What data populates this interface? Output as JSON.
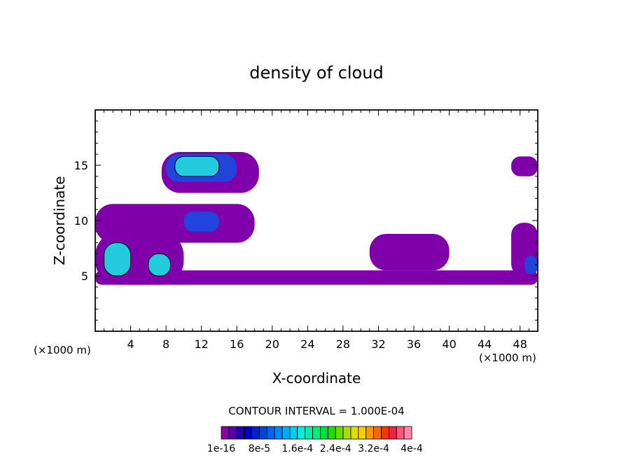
{
  "chart_data": {
    "type": "heatmap",
    "title": "density of cloud",
    "xlabel": "X-coordinate",
    "ylabel": "Z-coordinate",
    "x_unit_note": "(×1000 m)",
    "y_unit_note": "(×1000 m)",
    "xlim": [
      0,
      50
    ],
    "ylim": [
      0,
      20
    ],
    "x_ticks": [
      4,
      8,
      12,
      16,
      20,
      24,
      28,
      32,
      36,
      40,
      44,
      48
    ],
    "y_ticks": [
      5,
      10,
      15
    ],
    "contour_interval_text": "CONTOUR INTERVAL = 1.000E-04",
    "colorbar": {
      "colors": [
        "#8800aa",
        "#5500aa",
        "#2200aa",
        "#0000bb",
        "#0022cc",
        "#0044dd",
        "#0066ee",
        "#0088ff",
        "#00aaff",
        "#00ccee",
        "#00eedd",
        "#00eeaa",
        "#00ee77",
        "#00dd44",
        "#22dd00",
        "#66dd00",
        "#aadd00",
        "#dddd00",
        "#ffcc00",
        "#ff9900",
        "#ff6600",
        "#ff3300",
        "#ee2244",
        "#ff5577",
        "#ff88aa"
      ],
      "tick_labels": [
        "1e-16",
        "8e-5",
        "1.6e-4",
        "2.4e-4",
        "3.2e-4",
        "4e-4"
      ]
    },
    "regions": [
      {
        "level": "low",
        "x": [
          15,
          18
        ],
        "z": [
          13,
          15.5
        ]
      },
      {
        "level": "low",
        "x": [
          7.5,
          18.5
        ],
        "z": [
          12.5,
          16.2
        ]
      },
      {
        "level": "mid",
        "x": [
          8,
          16
        ],
        "z": [
          13.5,
          16
        ]
      },
      {
        "level": "high",
        "x": [
          9,
          14
        ],
        "z": [
          14,
          15.8
        ]
      },
      {
        "level": "low",
        "x": [
          0,
          18
        ],
        "z": [
          8,
          11.5
        ]
      },
      {
        "level": "mid",
        "x": [
          10,
          14
        ],
        "z": [
          9,
          10.8
        ]
      },
      {
        "level": "low",
        "x": [
          0,
          50
        ],
        "z": [
          4.2,
          5.5
        ]
      },
      {
        "level": "low",
        "x": [
          0,
          10
        ],
        "z": [
          4.2,
          9
        ]
      },
      {
        "level": "high",
        "x": [
          1,
          4
        ],
        "z": [
          5,
          8
        ]
      },
      {
        "level": "high",
        "x": [
          6,
          8.5
        ],
        "z": [
          5,
          7
        ]
      },
      {
        "level": "low",
        "x": [
          31,
          40
        ],
        "z": [
          5.5,
          8.8
        ]
      },
      {
        "level": "low",
        "x": [
          47,
          50
        ],
        "z": [
          5,
          9.8
        ]
      },
      {
        "level": "mid",
        "x": [
          48.5,
          50
        ],
        "z": [
          5.2,
          6.8
        ]
      },
      {
        "level": "low",
        "x": [
          47,
          50
        ],
        "z": [
          14,
          15.8
        ]
      }
    ]
  }
}
